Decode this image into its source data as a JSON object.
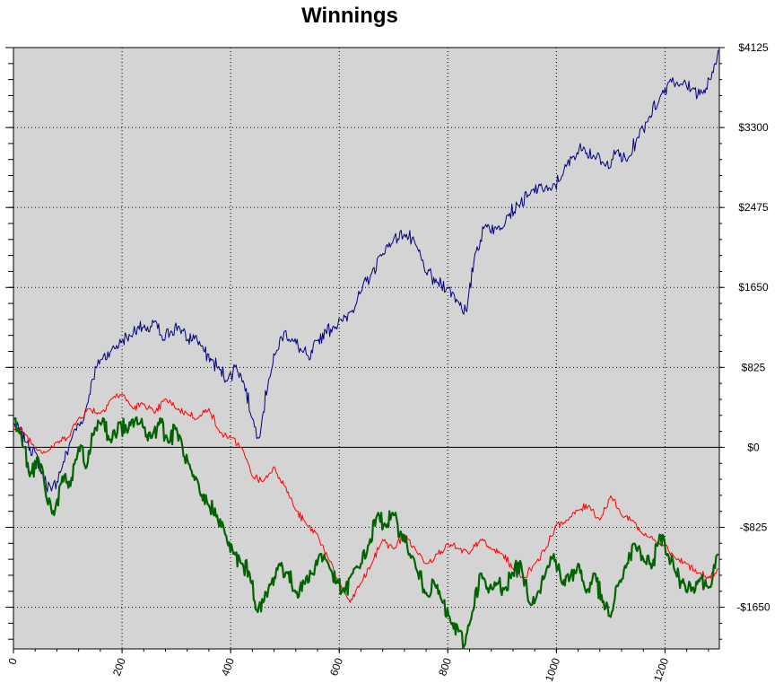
{
  "chart_data": {
    "type": "line",
    "title": "Winnings",
    "xlabel": "",
    "ylabel": "",
    "xlim": [
      0,
      1300
    ],
    "ylim": [
      -2080,
      4125
    ],
    "x_ticks": [
      0,
      200,
      400,
      600,
      800,
      1000,
      1200
    ],
    "y_ticks": [
      -1650,
      -825,
      0,
      825,
      1650,
      2475,
      3300,
      4125
    ],
    "y_tick_labels": [
      "-$1650",
      "-$825",
      "$0",
      "$825",
      "$1650",
      "$2475",
      "$3300",
      "$4125"
    ],
    "y_axis_side": "right",
    "grid": true,
    "legend": "none",
    "background_color": "#d4d4d4",
    "series": [
      {
        "color": "#000080",
        "x": [
          0,
          25,
          40,
          55,
          70,
          90,
          110,
          130,
          145,
          160,
          180,
          200,
          215,
          230,
          245,
          260,
          275,
          290,
          305,
          320,
          335,
          350,
          365,
          380,
          395,
          410,
          425,
          440,
          450,
          458,
          470,
          485,
          500,
          515,
          530,
          545,
          560,
          575,
          590,
          605,
          620,
          640,
          660,
          680,
          700,
          720,
          740,
          760,
          780,
          800,
          820,
          835,
          850,
          870,
          890,
          910,
          930,
          950,
          970,
          990,
          1010,
          1030,
          1050,
          1070,
          1090,
          1110,
          1130,
          1150,
          1170,
          1190,
          1210,
          1230,
          1250,
          1270,
          1285,
          1298
        ],
        "y": [
          250,
          50,
          -50,
          -300,
          -450,
          -200,
          150,
          300,
          700,
          900,
          1000,
          1100,
          1150,
          1250,
          1200,
          1300,
          1100,
          1200,
          1250,
          1100,
          1150,
          1000,
          900,
          800,
          700,
          850,
          650,
          300,
          100,
          300,
          700,
          1000,
          1200,
          1100,
          1000,
          900,
          1100,
          1200,
          1250,
          1300,
          1400,
          1600,
          1800,
          2000,
          2150,
          2200,
          2100,
          1800,
          1700,
          1650,
          1500,
          1400,
          2000,
          2300,
          2250,
          2400,
          2500,
          2600,
          2700,
          2650,
          2800,
          3000,
          3100,
          3000,
          2900,
          3050,
          2950,
          3200,
          3400,
          3600,
          3800,
          3750,
          3700,
          3650,
          3800,
          4100
        ]
      },
      {
        "color": "#ff0000",
        "x": [
          0,
          20,
          40,
          60,
          80,
          100,
          120,
          140,
          160,
          180,
          200,
          220,
          240,
          260,
          280,
          300,
          320,
          340,
          360,
          380,
          400,
          420,
          440,
          460,
          480,
          500,
          520,
          540,
          560,
          580,
          600,
          620,
          640,
          660,
          680,
          700,
          720,
          740,
          760,
          780,
          800,
          820,
          840,
          860,
          880,
          900,
          920,
          940,
          960,
          980,
          1000,
          1020,
          1040,
          1060,
          1080,
          1100,
          1120,
          1140,
          1160,
          1180,
          1200,
          1220,
          1240,
          1260,
          1280,
          1298
        ],
        "y": [
          200,
          150,
          0,
          -50,
          50,
          100,
          300,
          400,
          350,
          500,
          550,
          400,
          450,
          350,
          500,
          400,
          350,
          300,
          400,
          150,
          100,
          0,
          -300,
          -350,
          -200,
          -400,
          -650,
          -800,
          -900,
          -1150,
          -1400,
          -1600,
          -1400,
          -1200,
          -950,
          -1050,
          -900,
          -1050,
          -1200,
          -1100,
          -1000,
          -1050,
          -1100,
          -950,
          -1050,
          -1100,
          -1250,
          -1350,
          -1200,
          -1050,
          -800,
          -750,
          -650,
          -600,
          -750,
          -500,
          -700,
          -750,
          -900,
          -950,
          -1000,
          -1150,
          -1200,
          -1300,
          -1350,
          -1250
        ]
      },
      {
        "color": "#006400",
        "x": [
          0,
          15,
          30,
          45,
          60,
          75,
          90,
          105,
          120,
          135,
          150,
          165,
          180,
          195,
          210,
          225,
          240,
          255,
          270,
          285,
          300,
          315,
          330,
          345,
          360,
          375,
          390,
          405,
          420,
          435,
          450,
          460,
          475,
          490,
          505,
          520,
          535,
          550,
          565,
          580,
          595,
          610,
          625,
          640,
          655,
          670,
          685,
          700,
          715,
          730,
          745,
          760,
          775,
          790,
          805,
          820,
          830,
          845,
          860,
          875,
          890,
          905,
          920,
          935,
          950,
          965,
          980,
          995,
          1010,
          1025,
          1040,
          1055,
          1070,
          1085,
          1100,
          1115,
          1130,
          1145,
          1160,
          1175,
          1190,
          1205,
          1220,
          1235,
          1250,
          1265,
          1280,
          1298
        ],
        "y": [
          300,
          100,
          -300,
          -100,
          -500,
          -700,
          -300,
          -400,
          0,
          -200,
          200,
          300,
          50,
          250,
          150,
          300,
          200,
          100,
          300,
          50,
          200,
          -100,
          -300,
          -500,
          -600,
          -700,
          -900,
          -1100,
          -1200,
          -1300,
          -1700,
          -1600,
          -1400,
          -1200,
          -1300,
          -1500,
          -1400,
          -1300,
          -1100,
          -1200,
          -1400,
          -1500,
          -1300,
          -1200,
          -1000,
          -700,
          -800,
          -700,
          -900,
          -1100,
          -1300,
          -1500,
          -1400,
          -1600,
          -1800,
          -1900,
          -2050,
          -1700,
          -1300,
          -1500,
          -1400,
          -1450,
          -1300,
          -1200,
          -1600,
          -1500,
          -1300,
          -1100,
          -1400,
          -1350,
          -1200,
          -1500,
          -1300,
          -1600,
          -1750,
          -1400,
          -1200,
          -1000,
          -1150,
          -1250,
          -900,
          -1100,
          -1300,
          -1400,
          -1450,
          -1350,
          -1450,
          -1100
        ]
      }
    ]
  }
}
